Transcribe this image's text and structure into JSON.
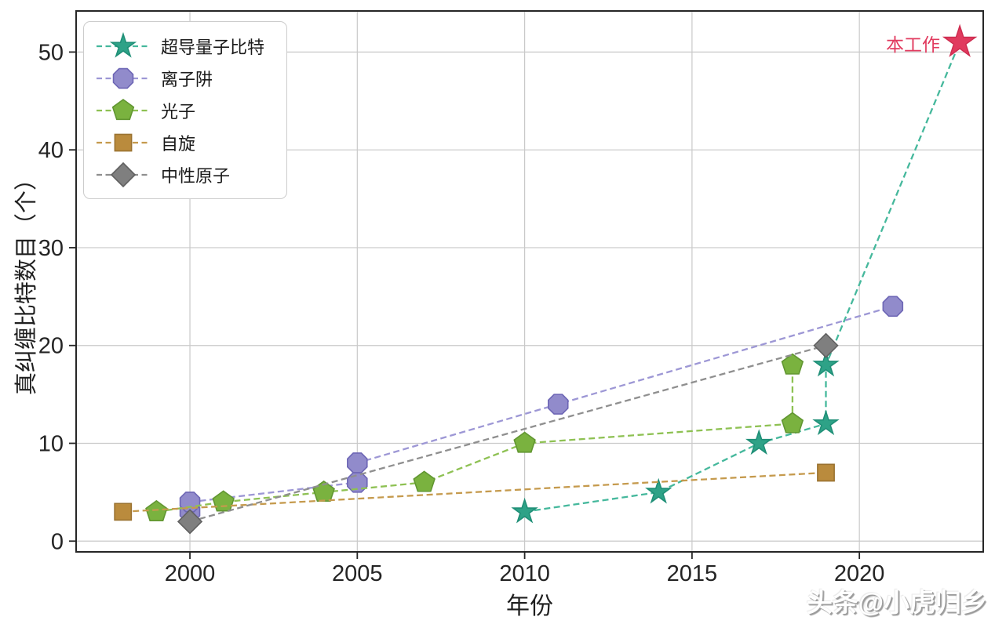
{
  "figure": {
    "watermark": "头条@小虎归乡"
  },
  "chart_data": {
    "type": "scatter",
    "title": "",
    "xlabel": "年份",
    "ylabel": "真纠缠比特数目（个）",
    "xlim": [
      1996.6,
      2023.7
    ],
    "ylim": [
      -1.1,
      54.2
    ],
    "xticks": [
      2000,
      2005,
      2010,
      2015,
      2020
    ],
    "yticks": [
      0,
      10,
      20,
      30,
      40,
      50
    ],
    "grid": true,
    "legend_position": "upper-left",
    "line_style": "dashed",
    "series": [
      {
        "key": "superconducting-qubits",
        "name": "超导量子比特",
        "marker": "star",
        "fill": "#2ea287",
        "edge": "#1f8f77",
        "line": "#45b89c",
        "marker_radius": 15.5,
        "points": [
          [
            2010,
            3
          ],
          [
            2014,
            5
          ],
          [
            2017,
            10
          ],
          [
            2019,
            12
          ],
          [
            2019,
            18
          ]
        ],
        "line_extra": [
          [
            2023,
            51
          ]
        ]
      },
      {
        "key": "ion-trap",
        "name": "离子阱",
        "marker": "octagon",
        "fill": "#918bcb",
        "edge": "#6d66b5",
        "line": "#9d97d5",
        "marker_radius": 13.5,
        "points": [
          [
            2000,
            3
          ],
          [
            2000,
            4
          ],
          [
            2005,
            6
          ],
          [
            2005,
            8
          ],
          [
            2011,
            14
          ],
          [
            2021,
            24
          ]
        ]
      },
      {
        "key": "photon",
        "name": "光子",
        "marker": "pentagon",
        "fill": "#7ab23f",
        "edge": "#619631",
        "line": "#8ec153",
        "marker_radius": 14,
        "points": [
          [
            1999,
            3
          ],
          [
            2001,
            4
          ],
          [
            2004,
            5
          ],
          [
            2007,
            6
          ],
          [
            2010,
            10
          ],
          [
            2018,
            12
          ],
          [
            2018,
            18
          ]
        ]
      },
      {
        "key": "spin",
        "name": "自旋",
        "marker": "square",
        "fill": "#ba8b3d",
        "edge": "#9a7230",
        "line": "#c59a4d",
        "marker_radius": 15,
        "points": [
          [
            1998,
            3
          ],
          [
            2019,
            7
          ]
        ]
      },
      {
        "key": "neutral-atom",
        "name": "中性原子",
        "marker": "diamond",
        "fill": "#7f7f7f",
        "edge": "#616161",
        "line": "#8f8f8f",
        "marker_radius": 15,
        "points": [
          [
            2000,
            2
          ],
          [
            2019,
            20
          ]
        ]
      }
    ],
    "annotation": {
      "text": "本工作",
      "color": "#e13a5e",
      "edge": "#ce2d50",
      "marker": "star",
      "marker_radius": 21,
      "point": [
        2023,
        51
      ]
    }
  },
  "colors": {
    "grid": "#c9c9c9",
    "spine": "#262626",
    "tick_label": "#242424",
    "legend_border": "#cccccc"
  }
}
